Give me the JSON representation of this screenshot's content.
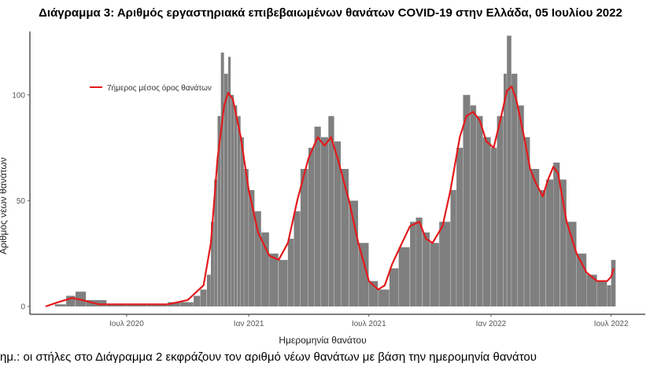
{
  "title": "Διάγραμμα 3: Αριθμός εργαστηριακά επιβεβαιωμένων θανάτων COVID-19 στην Ελλάδα, 05 Ιουλίου 2022",
  "footnote": "ημ.: οι στήλες στο Διάγραμμα 2 εκφράζουν τον αριθμό νέων θανάτων με βάση την ημερομηνία θανάτου",
  "chart_data": {
    "type": "bar",
    "xlabel": "Ημερομηνία θανάτου",
    "ylabel": "Αριθμός νέων θανάτων",
    "ylim": [
      0,
      130
    ],
    "yticks": [
      0,
      50,
      100
    ],
    "x_tick_labels": [
      {
        "label": "Ιουλ 2020",
        "date": "2020-07-01"
      },
      {
        "label": "Ιαν 2021",
        "date": "2021-01-01"
      },
      {
        "label": "Ιουλ 2021",
        "date": "2021-07-01"
      },
      {
        "label": "Ιαν 2022",
        "date": "2022-01-01"
      },
      {
        "label": "Ιουλ 2022",
        "date": "2022-07-01"
      }
    ],
    "xlim": [
      "2020-03-01",
      "2022-07-05"
    ],
    "legend": {
      "position": "top-left",
      "entries": [
        "7ήμερος μέσος όρος θανάτων"
      ]
    },
    "colors": {
      "bars": "#7f7f7f",
      "line": "#e31a1c",
      "axis": "#000000"
    },
    "grid": false,
    "series": [
      {
        "name": "7ήμερος μέσος όρος θανάτων",
        "kind": "line",
        "points": [
          [
            "2020-03-01",
            0
          ],
          [
            "2020-03-20",
            2
          ],
          [
            "2020-04-10",
            4
          ],
          [
            "2020-04-25",
            3
          ],
          [
            "2020-05-20",
            1
          ],
          [
            "2020-06-15",
            1
          ],
          [
            "2020-08-01",
            1
          ],
          [
            "2020-09-01",
            1
          ],
          [
            "2020-10-01",
            3
          ],
          [
            "2020-10-25",
            10
          ],
          [
            "2020-11-05",
            30
          ],
          [
            "2020-11-15",
            70
          ],
          [
            "2020-11-25",
            95
          ],
          [
            "2020-12-01",
            101
          ],
          [
            "2020-12-08",
            98
          ],
          [
            "2020-12-20",
            80
          ],
          [
            "2021-01-01",
            55
          ],
          [
            "2021-01-15",
            35
          ],
          [
            "2021-02-01",
            24
          ],
          [
            "2021-02-15",
            22
          ],
          [
            "2021-03-01",
            30
          ],
          [
            "2021-03-15",
            50
          ],
          [
            "2021-04-01",
            70
          ],
          [
            "2021-04-15",
            80
          ],
          [
            "2021-04-25",
            76
          ],
          [
            "2021-05-05",
            80
          ],
          [
            "2021-05-15",
            70
          ],
          [
            "2021-06-01",
            50
          ],
          [
            "2021-06-15",
            30
          ],
          [
            "2021-07-01",
            12
          ],
          [
            "2021-07-15",
            8
          ],
          [
            "2021-07-25",
            10
          ],
          [
            "2021-08-05",
            20
          ],
          [
            "2021-08-20",
            30
          ],
          [
            "2021-09-01",
            38
          ],
          [
            "2021-09-15",
            40
          ],
          [
            "2021-09-25",
            32
          ],
          [
            "2021-10-05",
            30
          ],
          [
            "2021-10-20",
            38
          ],
          [
            "2021-11-01",
            55
          ],
          [
            "2021-11-15",
            80
          ],
          [
            "2021-11-25",
            90
          ],
          [
            "2021-12-05",
            92
          ],
          [
            "2021-12-15",
            88
          ],
          [
            "2021-12-25",
            78
          ],
          [
            "2022-01-05",
            75
          ],
          [
            "2022-01-15",
            88
          ],
          [
            "2022-01-25",
            102
          ],
          [
            "2022-02-01",
            104
          ],
          [
            "2022-02-08",
            98
          ],
          [
            "2022-02-20",
            80
          ],
          [
            "2022-03-01",
            65
          ],
          [
            "2022-03-10",
            58
          ],
          [
            "2022-03-20",
            52
          ],
          [
            "2022-03-28",
            60
          ],
          [
            "2022-04-05",
            66
          ],
          [
            "2022-04-12",
            63
          ],
          [
            "2022-04-25",
            40
          ],
          [
            "2022-05-10",
            25
          ],
          [
            "2022-05-25",
            16
          ],
          [
            "2022-06-10",
            12
          ],
          [
            "2022-06-25",
            12
          ],
          [
            "2022-07-01",
            14
          ],
          [
            "2022-07-05",
            18
          ]
        ]
      },
      {
        "name": "",
        "kind": "bars",
        "points": [
          [
            "2020-03-15",
            1
          ],
          [
            "2020-04-01",
            5
          ],
          [
            "2020-04-15",
            7
          ],
          [
            "2020-05-01",
            3
          ],
          [
            "2020-06-01",
            1
          ],
          [
            "2020-07-01",
            1
          ],
          [
            "2020-08-01",
            1
          ],
          [
            "2020-09-01",
            2
          ],
          [
            "2020-09-20",
            2
          ],
          [
            "2020-10-10",
            5
          ],
          [
            "2020-10-20",
            8
          ],
          [
            "2020-10-30",
            15
          ],
          [
            "2020-11-05",
            40
          ],
          [
            "2020-11-10",
            60
          ],
          [
            "2020-11-15",
            90
          ],
          [
            "2020-11-20",
            120
          ],
          [
            "2020-11-25",
            110
          ],
          [
            "2020-12-01",
            118
          ],
          [
            "2020-12-05",
            100
          ],
          [
            "2020-12-10",
            95
          ],
          [
            "2020-12-15",
            90
          ],
          [
            "2020-12-20",
            80
          ],
          [
            "2020-12-25",
            65
          ],
          [
            "2021-01-01",
            55
          ],
          [
            "2021-01-10",
            45
          ],
          [
            "2021-01-20",
            35
          ],
          [
            "2021-02-01",
            25
          ],
          [
            "2021-02-15",
            22
          ],
          [
            "2021-03-01",
            32
          ],
          [
            "2021-03-10",
            45
          ],
          [
            "2021-03-20",
            65
          ],
          [
            "2021-04-01",
            75
          ],
          [
            "2021-04-10",
            85
          ],
          [
            "2021-04-20",
            80
          ],
          [
            "2021-05-01",
            90
          ],
          [
            "2021-05-10",
            78
          ],
          [
            "2021-05-20",
            65
          ],
          [
            "2021-06-01",
            50
          ],
          [
            "2021-06-15",
            30
          ],
          [
            "2021-07-01",
            12
          ],
          [
            "2021-07-15",
            8
          ],
          [
            "2021-08-01",
            18
          ],
          [
            "2021-08-15",
            28
          ],
          [
            "2021-09-01",
            40
          ],
          [
            "2021-09-10",
            42
          ],
          [
            "2021-09-20",
            35
          ],
          [
            "2021-10-01",
            30
          ],
          [
            "2021-10-15",
            40
          ],
          [
            "2021-11-01",
            55
          ],
          [
            "2021-11-10",
            75
          ],
          [
            "2021-11-20",
            100
          ],
          [
            "2021-12-01",
            95
          ],
          [
            "2021-12-10",
            90
          ],
          [
            "2021-12-20",
            80
          ],
          [
            "2022-01-01",
            75
          ],
          [
            "2022-01-10",
            90
          ],
          [
            "2022-01-20",
            110
          ],
          [
            "2022-01-25",
            128
          ],
          [
            "2022-02-01",
            110
          ],
          [
            "2022-02-10",
            95
          ],
          [
            "2022-02-20",
            80
          ],
          [
            "2022-03-01",
            65
          ],
          [
            "2022-03-15",
            55
          ],
          [
            "2022-03-25",
            60
          ],
          [
            "2022-04-05",
            68
          ],
          [
            "2022-04-15",
            60
          ],
          [
            "2022-04-25",
            40
          ],
          [
            "2022-05-10",
            25
          ],
          [
            "2022-05-25",
            15
          ],
          [
            "2022-06-10",
            12
          ],
          [
            "2022-06-25",
            10
          ],
          [
            "2022-07-01",
            22
          ]
        ]
      }
    ]
  }
}
